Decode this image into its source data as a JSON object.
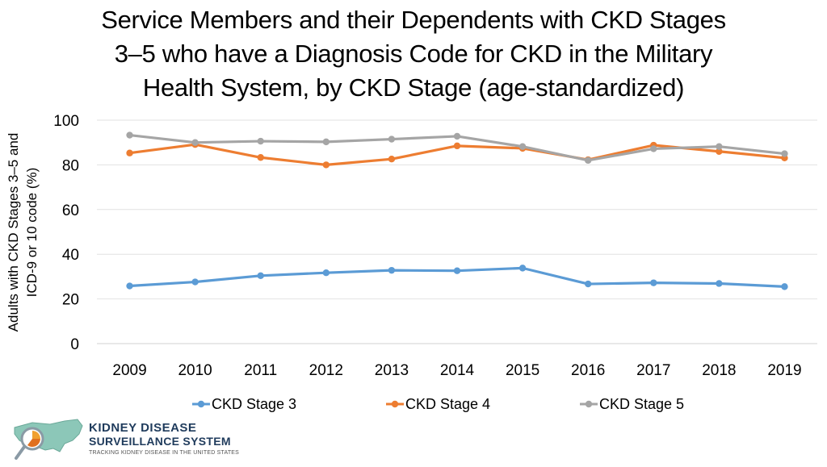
{
  "title_lines": [
    "Service Members and their Dependents with CKD Stages",
    "3–5 who have a Diagnosis Code for CKD in the Military",
    "Health System, by CKD Stage (age-standardized)"
  ],
  "logo": {
    "line1": "KIDNEY DISEASE",
    "line2": "SURVEILLANCE SYSTEM",
    "tagline": "TRACKING KIDNEY DISEASE IN THE UNITED STATES",
    "icon": "us-map-logo-icon"
  },
  "chart_data": {
    "type": "line",
    "title": "Service Members and their Dependents with CKD Stages 3–5 who have a Diagnosis Code for CKD in the Military Health System, by CKD Stage (age-standardized)",
    "ylabel_lines": [
      "Adults with CKD Stages 3–5 and",
      "ICD-9 or 10 code (%)"
    ],
    "xlabel": "",
    "categories": [
      "2009",
      "2010",
      "2011",
      "2012",
      "2013",
      "2014",
      "2015",
      "2016",
      "2017",
      "2018",
      "2019"
    ],
    "ylim": [
      0,
      100
    ],
    "yticks": [
      "0",
      "20",
      "40",
      "60",
      "80",
      "100"
    ],
    "grid": true,
    "legend_position": "bottom",
    "series": [
      {
        "name": "CKD Stage 3",
        "color": "#5b9bd5",
        "values": [
          25.8,
          27.6,
          30.4,
          31.7,
          32.8,
          32.6,
          33.8,
          26.7,
          27.2,
          26.9,
          25.5
        ]
      },
      {
        "name": "CKD Stage 4",
        "color": "#ed7d31",
        "values": [
          85.3,
          89.1,
          83.3,
          80.0,
          82.6,
          88.5,
          87.4,
          82.3,
          88.8,
          86.0,
          83.1
        ]
      },
      {
        "name": "CKD Stage 5",
        "color": "#a5a5a5",
        "values": [
          93.3,
          90.0,
          90.6,
          90.3,
          91.5,
          92.8,
          88.2,
          82.0,
          87.2,
          88.2,
          85.0
        ]
      }
    ]
  }
}
